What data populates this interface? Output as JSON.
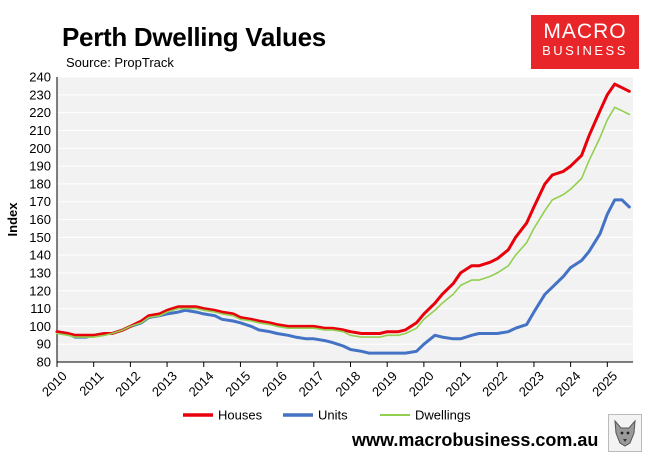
{
  "header": {
    "title": "Perth Dwelling Values",
    "subtitle": "Source: PropTrack"
  },
  "logo": {
    "line1": "MACRO",
    "line2": "BUSINESS"
  },
  "footer": {
    "website": "www.macrobusiness.com.au"
  },
  "colors": {
    "houses": "#e8000b",
    "units": "#4472c4",
    "dwellings": "#92d050",
    "plot_bg": "#f2f2f2",
    "logo_bg": "#e8262a"
  },
  "chart_data": {
    "type": "line",
    "ylabel": "Index",
    "xlabel": "",
    "ylim": [
      80,
      240
    ],
    "yticks": [
      80,
      90,
      100,
      110,
      120,
      130,
      140,
      150,
      160,
      170,
      180,
      190,
      200,
      210,
      220,
      230,
      240
    ],
    "xlim": [
      2010.0,
      2025.7
    ],
    "xticks": [
      2010,
      2011,
      2012,
      2013,
      2014,
      2015,
      2016,
      2017,
      2018,
      2019,
      2020,
      2021,
      2022,
      2023,
      2024,
      2025
    ],
    "grid": "horizontal",
    "legend_position": "bottom",
    "series": [
      {
        "name": "Houses",
        "x": [
          2010.0,
          2010.3,
          2010.5,
          2010.8,
          2011.0,
          2011.3,
          2011.5,
          2011.8,
          2012.0,
          2012.3,
          2012.5,
          2012.8,
          2013.0,
          2013.3,
          2013.5,
          2013.8,
          2014.0,
          2014.3,
          2014.5,
          2014.8,
          2015.0,
          2015.3,
          2015.5,
          2015.8,
          2016.0,
          2016.3,
          2016.5,
          2016.8,
          2017.0,
          2017.3,
          2017.5,
          2017.8,
          2018.0,
          2018.3,
          2018.5,
          2018.8,
          2019.0,
          2019.3,
          2019.5,
          2019.8,
          2020.0,
          2020.3,
          2020.5,
          2020.8,
          2021.0,
          2021.3,
          2021.5,
          2021.8,
          2022.0,
          2022.3,
          2022.5,
          2022.8,
          2023.0,
          2023.3,
          2023.5,
          2023.8,
          2024.0,
          2024.3,
          2024.5,
          2024.8,
          2025.0,
          2025.2,
          2025.4,
          2025.6
        ],
        "values": [
          97,
          96,
          95,
          95,
          95,
          96,
          96,
          98,
          100,
          103,
          106,
          107,
          109,
          111,
          111,
          111,
          110,
          109,
          108,
          107,
          105,
          104,
          103,
          102,
          101,
          100,
          100,
          100,
          100,
          99,
          99,
          98,
          97,
          96,
          96,
          96,
          97,
          97,
          98,
          102,
          107,
          113,
          118,
          124,
          130,
          134,
          134,
          136,
          138,
          143,
          150,
          158,
          167,
          180,
          185,
          187,
          190,
          196,
          207,
          221,
          230,
          236,
          234,
          232
        ]
      },
      {
        "name": "Units",
        "x": [
          2010.0,
          2010.3,
          2010.5,
          2010.8,
          2011.0,
          2011.3,
          2011.5,
          2011.8,
          2012.0,
          2012.3,
          2012.5,
          2012.8,
          2013.0,
          2013.3,
          2013.5,
          2013.8,
          2014.0,
          2014.3,
          2014.5,
          2014.8,
          2015.0,
          2015.3,
          2015.5,
          2015.8,
          2016.0,
          2016.3,
          2016.5,
          2016.8,
          2017.0,
          2017.3,
          2017.5,
          2017.8,
          2018.0,
          2018.3,
          2018.5,
          2018.8,
          2019.0,
          2019.3,
          2019.5,
          2019.8,
          2020.0,
          2020.3,
          2020.5,
          2020.8,
          2021.0,
          2021.3,
          2021.5,
          2021.8,
          2022.0,
          2022.3,
          2022.5,
          2022.8,
          2023.0,
          2023.3,
          2023.5,
          2023.8,
          2024.0,
          2024.3,
          2024.5,
          2024.8,
          2025.0,
          2025.2,
          2025.4,
          2025.6
        ],
        "values": [
          97,
          96,
          94,
          94,
          95,
          96,
          96,
          98,
          100,
          102,
          105,
          106,
          107,
          108,
          109,
          108,
          107,
          106,
          104,
          103,
          102,
          100,
          98,
          97,
          96,
          95,
          94,
          93,
          93,
          92,
          91,
          89,
          87,
          86,
          85,
          85,
          85,
          85,
          85,
          86,
          90,
          95,
          94,
          93,
          93,
          95,
          96,
          96,
          96,
          97,
          99,
          101,
          108,
          118,
          122,
          128,
          133,
          137,
          142,
          152,
          163,
          171,
          171,
          167
        ]
      },
      {
        "name": "Dwellings",
        "x": [
          2010.0,
          2010.3,
          2010.5,
          2010.8,
          2011.0,
          2011.3,
          2011.5,
          2011.8,
          2012.0,
          2012.3,
          2012.5,
          2012.8,
          2013.0,
          2013.3,
          2013.5,
          2013.8,
          2014.0,
          2014.3,
          2014.5,
          2014.8,
          2015.0,
          2015.3,
          2015.5,
          2015.8,
          2016.0,
          2016.3,
          2016.5,
          2016.8,
          2017.0,
          2017.3,
          2017.5,
          2017.8,
          2018.0,
          2018.3,
          2018.5,
          2018.8,
          2019.0,
          2019.3,
          2019.5,
          2019.8,
          2020.0,
          2020.3,
          2020.5,
          2020.8,
          2021.0,
          2021.3,
          2021.5,
          2021.8,
          2022.0,
          2022.3,
          2022.5,
          2022.8,
          2023.0,
          2023.3,
          2023.5,
          2023.8,
          2024.0,
          2024.3,
          2024.5,
          2024.8,
          2025.0,
          2025.2,
          2025.4,
          2025.6
        ],
        "values": [
          96,
          95,
          94,
          94,
          94,
          95,
          96,
          98,
          100,
          102,
          105,
          106,
          108,
          110,
          110,
          110,
          109,
          108,
          107,
          106,
          104,
          103,
          102,
          101,
          100,
          99,
          99,
          99,
          99,
          98,
          98,
          97,
          95,
          94,
          94,
          94,
          95,
          95,
          96,
          99,
          104,
          109,
          113,
          118,
          123,
          126,
          126,
          128,
          130,
          134,
          140,
          147,
          155,
          165,
          171,
          174,
          177,
          183,
          193,
          206,
          216,
          223,
          221,
          219
        ]
      }
    ]
  }
}
